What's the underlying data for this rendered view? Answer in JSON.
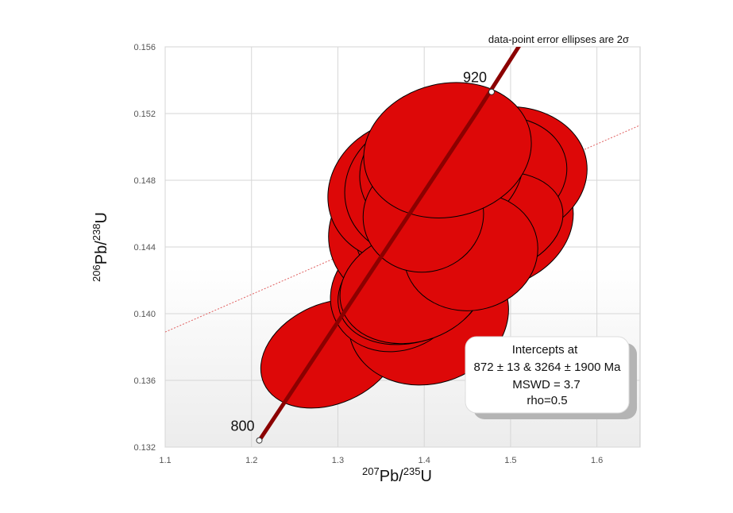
{
  "chart_data": {
    "type": "concordia",
    "xlabel": {
      "sup": "207",
      "main": "Pb/",
      "sup2": "235",
      "main2": "U"
    },
    "ylabel": {
      "sup": "206",
      "main": "Pb/",
      "sup2": "238",
      "main2": "U"
    },
    "xlim": [
      1.1,
      1.65
    ],
    "ylim": [
      0.132,
      0.156
    ],
    "x_ticks": [
      "1.1",
      "1.2",
      "1.3",
      "1.4",
      "1.5",
      "1.6"
    ],
    "y_ticks": [
      "0.132",
      "0.136",
      "0.140",
      "0.144",
      "0.148",
      "0.152",
      "0.156"
    ],
    "note": "data-point error ellipses are 2σ",
    "concordia": {
      "points": [
        [
          1.209,
          0.1324
        ],
        [
          1.46,
          0.152
        ],
        [
          1.513,
          0.1563
        ]
      ],
      "age_markers": [
        {
          "label": "800",
          "x": 1.209,
          "y": 0.1324
        },
        {
          "label": "920",
          "x": 1.478,
          "y": 0.1533
        }
      ],
      "color": "#8b0000"
    },
    "discordia": {
      "from": [
        1.1,
        0.1389
      ],
      "to": [
        1.65,
        0.1513
      ],
      "color": "#e06060"
    },
    "ellipses": [
      {
        "cx": 1.291,
        "cy": 0.1376,
        "rx": 0.084,
        "ry": 0.003,
        "angle": 24
      },
      {
        "cx": 1.405,
        "cy": 0.1398,
        "rx": 0.094,
        "ry": 0.004,
        "angle": 17
      },
      {
        "cx": 1.368,
        "cy": 0.1413,
        "rx": 0.078,
        "ry": 0.0035,
        "angle": 22
      },
      {
        "cx": 1.386,
        "cy": 0.1415,
        "rx": 0.088,
        "ry": 0.0032,
        "angle": 18
      },
      {
        "cx": 1.369,
        "cy": 0.1447,
        "rx": 0.08,
        "ry": 0.004,
        "angle": 16
      },
      {
        "cx": 1.4,
        "cy": 0.1449,
        "rx": 0.08,
        "ry": 0.0035,
        "angle": 11
      },
      {
        "cx": 1.477,
        "cy": 0.1455,
        "rx": 0.097,
        "ry": 0.004,
        "angle": 16
      },
      {
        "cx": 1.449,
        "cy": 0.1465,
        "rx": 0.096,
        "ry": 0.0035,
        "angle": 7
      },
      {
        "cx": 1.491,
        "cy": 0.1484,
        "rx": 0.098,
        "ry": 0.004,
        "angle": 8
      },
      {
        "cx": 1.41,
        "cy": 0.1478,
        "rx": 0.075,
        "ry": 0.0035,
        "angle": 20
      },
      {
        "cx": 1.381,
        "cy": 0.1474,
        "rx": 0.094,
        "ry": 0.0042,
        "angle": 20
      },
      {
        "cx": 1.458,
        "cy": 0.1466,
        "rx": 0.082,
        "ry": 0.0038,
        "angle": 20
      },
      {
        "cx": 1.401,
        "cy": 0.1476,
        "rx": 0.094,
        "ry": 0.0042,
        "angle": 16
      },
      {
        "cx": 1.477,
        "cy": 0.1483,
        "rx": 0.089,
        "ry": 0.0035,
        "angle": 12
      },
      {
        "cx": 1.445,
        "cy": 0.1447,
        "rx": 0.09,
        "ry": 0.004,
        "angle": 15
      },
      {
        "cx": 1.477,
        "cy": 0.1454,
        "rx": 0.085,
        "ry": 0.003,
        "angle": 14
      },
      {
        "cx": 1.42,
        "cy": 0.1487,
        "rx": 0.096,
        "ry": 0.004,
        "angle": 16
      },
      {
        "cx": 1.414,
        "cy": 0.145,
        "rx": 0.07,
        "ry": 0.0037,
        "angle": 10
      },
      {
        "cx": 1.386,
        "cy": 0.1416,
        "rx": 0.085,
        "ry": 0.0033,
        "angle": 16
      },
      {
        "cx": 1.454,
        "cy": 0.1437,
        "rx": 0.078,
        "ry": 0.0035,
        "angle": 12
      },
      {
        "cx": 1.399,
        "cy": 0.1459,
        "rx": 0.07,
        "ry": 0.0034,
        "angle": 14
      },
      {
        "cx": 1.427,
        "cy": 0.1498,
        "rx": 0.098,
        "ry": 0.004,
        "angle": 13
      }
    ],
    "ellipse_fill": "#dd0808",
    "ellipse_stroke": "#000000",
    "intercept_box": {
      "lines": [
        "Intercepts at",
        "872 ± 13 & 3264 ± 1900 Ma",
        "MSWD = 3.7",
        "rho=0.5"
      ]
    }
  }
}
